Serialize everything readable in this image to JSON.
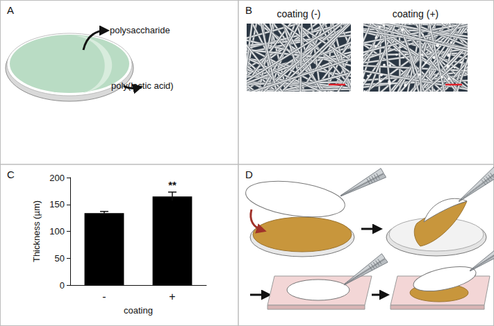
{
  "panels": {
    "A": {
      "label": "A",
      "labels": [
        "polysaccharide",
        "poly(lactic acid)"
      ]
    },
    "B": {
      "label": "B",
      "titles": [
        "coating (-)",
        "coating (+)"
      ]
    },
    "C": {
      "label": "C"
    },
    "D": {
      "label": "D"
    }
  },
  "chart_data": {
    "type": "bar",
    "categories": [
      "-",
      "+"
    ],
    "values": [
      134,
      165
    ],
    "errors": [
      3,
      8
    ],
    "color": "#000000",
    "ylabel": "Thickness (µm)",
    "xlabel": "coating",
    "ylim": [
      0,
      200
    ],
    "yticks": [
      0,
      50,
      100,
      150,
      200
    ],
    "grid": false,
    "annotations": [
      {
        "text": "**",
        "category": "+"
      }
    ]
  }
}
